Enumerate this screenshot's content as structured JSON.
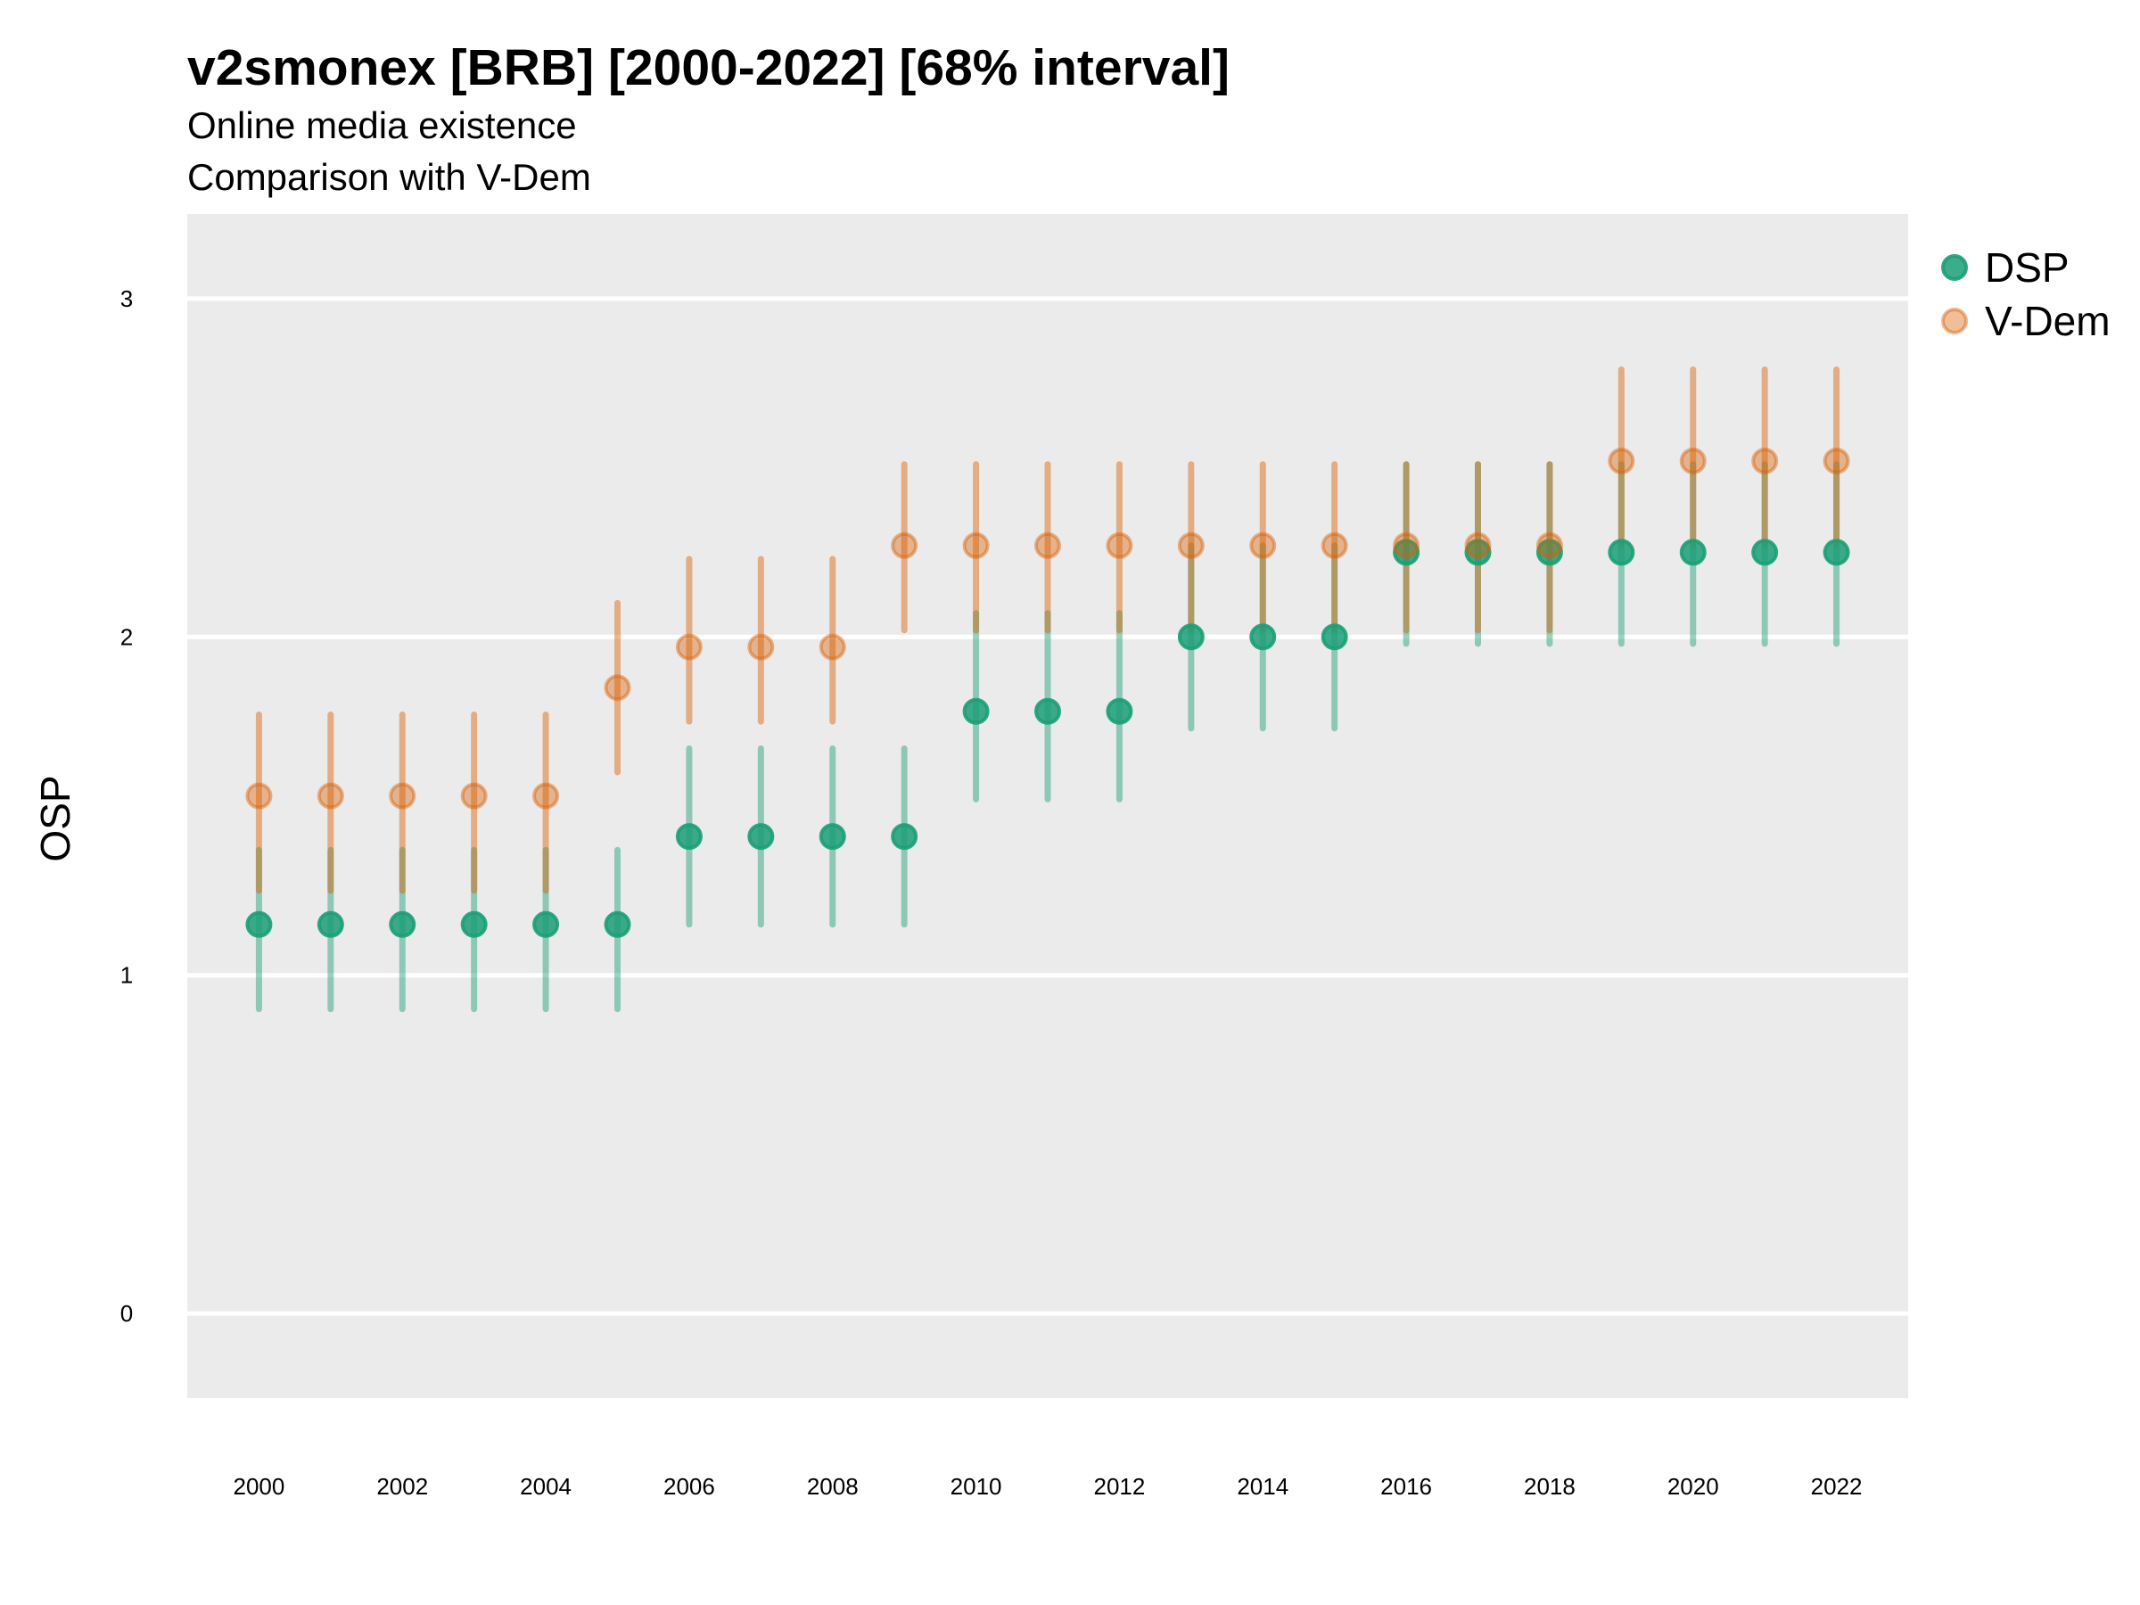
{
  "chart_data": {
    "type": "scatter",
    "title": "v2smonex [BRB] [2000-2022] [68% interval]",
    "subtitle_line1": "Online media existence",
    "subtitle_line2": "Comparison with V-Dem",
    "ylabel": "OSP",
    "xlabel": "",
    "ylim": [
      -0.25,
      3.25
    ],
    "y_ticks": [
      "0",
      "1",
      "2",
      "3"
    ],
    "x_ticks": [
      "2000",
      "2002",
      "2004",
      "2006",
      "2008",
      "2010",
      "2012",
      "2014",
      "2016",
      "2018",
      "2020",
      "2022"
    ],
    "xlim": [
      1999,
      2023
    ],
    "grid": true,
    "legend_position": "right-top",
    "series": [
      {
        "name": "DSP",
        "color": "#1b9e77",
        "x": [
          2000,
          2001,
          2002,
          2003,
          2004,
          2005,
          2006,
          2007,
          2008,
          2009,
          2010,
          2011,
          2012,
          2013,
          2014,
          2015,
          2016,
          2017,
          2018,
          2019,
          2020,
          2021,
          2022
        ],
        "y": [
          1.15,
          1.15,
          1.15,
          1.15,
          1.15,
          1.15,
          1.41,
          1.41,
          1.41,
          1.41,
          1.78,
          1.78,
          1.78,
          2.0,
          2.0,
          2.0,
          2.25,
          2.25,
          2.25,
          2.25,
          2.25,
          2.25,
          2.25
        ],
        "low": [
          0.9,
          0.9,
          0.9,
          0.9,
          0.9,
          0.9,
          1.15,
          1.15,
          1.15,
          1.15,
          1.52,
          1.52,
          1.52,
          1.73,
          1.73,
          1.73,
          1.98,
          1.98,
          1.98,
          1.98,
          1.98,
          1.98,
          1.98
        ],
        "high": [
          1.37,
          1.37,
          1.37,
          1.37,
          1.37,
          1.37,
          1.67,
          1.67,
          1.67,
          1.67,
          2.07,
          2.07,
          2.07,
          2.27,
          2.27,
          2.27,
          2.51,
          2.51,
          2.51,
          2.51,
          2.51,
          2.51,
          2.51
        ]
      },
      {
        "name": "V-Dem",
        "color": "#d95f02",
        "x": [
          2000,
          2001,
          2002,
          2003,
          2004,
          2005,
          2006,
          2007,
          2008,
          2009,
          2010,
          2011,
          2012,
          2013,
          2014,
          2015,
          2016,
          2017,
          2018,
          2019,
          2020,
          2021,
          2022
        ],
        "y": [
          1.53,
          1.53,
          1.53,
          1.53,
          1.53,
          1.85,
          1.97,
          1.97,
          1.97,
          2.27,
          2.27,
          2.27,
          2.27,
          2.27,
          2.27,
          2.27,
          2.27,
          2.27,
          2.27,
          2.52,
          2.52,
          2.52,
          2.52
        ],
        "low": [
          1.25,
          1.25,
          1.25,
          1.25,
          1.25,
          1.6,
          1.75,
          1.75,
          1.75,
          2.02,
          2.02,
          2.02,
          2.02,
          2.02,
          2.02,
          2.02,
          2.02,
          2.02,
          2.02,
          2.27,
          2.27,
          2.27,
          2.27
        ],
        "high": [
          1.77,
          1.77,
          1.77,
          1.77,
          1.77,
          2.1,
          2.23,
          2.23,
          2.23,
          2.51,
          2.51,
          2.51,
          2.51,
          2.51,
          2.51,
          2.51,
          2.51,
          2.51,
          2.51,
          2.79,
          2.79,
          2.79,
          2.79
        ]
      }
    ]
  }
}
